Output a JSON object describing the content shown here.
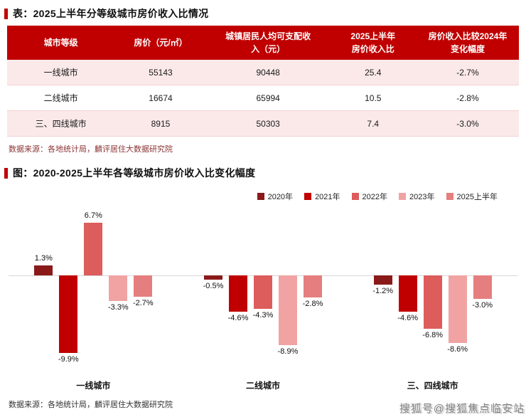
{
  "accent_color": "#c00000",
  "table_section": {
    "title": "表：2025上半年分等级城市房价收入比情况",
    "columns": [
      "城市等级",
      "房价（元/㎡）",
      "城镇居民人均可支配收\n入（元）",
      "2025上半年\n房价收入比",
      "房价收入比较2024年\n变化幅度"
    ],
    "rows": [
      [
        "一线城市",
        "55143",
        "90448",
        "25.4",
        "-2.7%"
      ],
      [
        "二线城市",
        "16674",
        "65994",
        "10.5",
        "-2.8%"
      ],
      [
        "三、四线城市",
        "8915",
        "50303",
        "7.4",
        "-3.0%"
      ]
    ],
    "source": "数据来源：各地统计局，麟评居住大数据研究院"
  },
  "chart_section": {
    "title": "图：2020-2025上半年各等级城市房价收入比变化幅度",
    "source": "数据来源：各地统计局，麟评居住大数据研究院"
  },
  "chart_data": {
    "type": "bar",
    "title": "2020-2025上半年各等级城市房价收入比变化幅度",
    "categories": [
      "一线城市",
      "二线城市",
      "三、四线城市"
    ],
    "series": [
      {
        "name": "2020年",
        "color": "#8a1a1a",
        "values": [
          1.3,
          -0.5,
          -1.2
        ]
      },
      {
        "name": "2021年",
        "color": "#c00000",
        "values": [
          -9.9,
          -4.6,
          -4.6
        ]
      },
      {
        "name": "2022年",
        "color": "#dd5c5c",
        "values": [
          6.7,
          -4.3,
          -6.8
        ]
      },
      {
        "name": "2023年",
        "color": "#f1a3a3",
        "values": [
          -3.3,
          -8.9,
          -8.6
        ]
      },
      {
        "name": "2025上半年",
        "color": "#e57e7e",
        "values": [
          -2.7,
          -2.8,
          -3.0
        ]
      }
    ],
    "value_suffix": "%",
    "ylim": [
      -10.5,
      7.5
    ],
    "grid": false,
    "legend_position": "top-right"
  },
  "watermark": "搜狐号@搜狐焦点临安站"
}
